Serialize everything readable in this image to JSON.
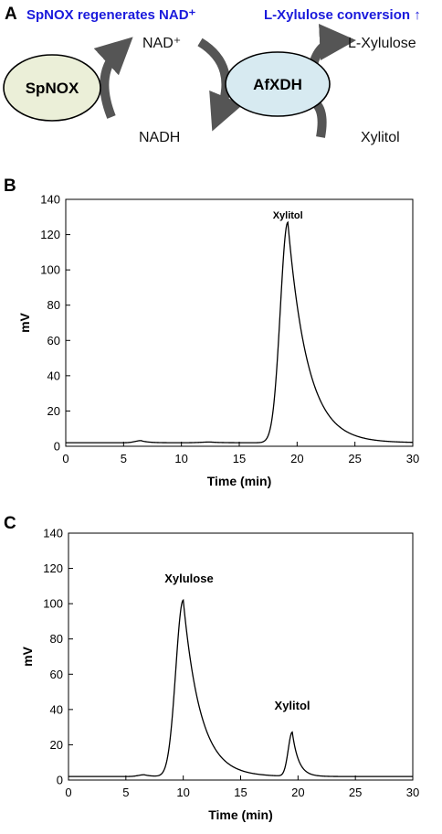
{
  "figure": {
    "panel_labels": [
      "A",
      "B",
      "C"
    ],
    "scheme": {
      "header_left": "SpNOX regenerates NAD⁺",
      "header_right": "L-Xylulose conversion ↑",
      "colors": {
        "header": "#1a1adc",
        "spnox_fill": "#ebefd8",
        "afxdh_fill": "#d7eaf1",
        "arrow": "#555555"
      },
      "nodes": {
        "left": "SpNOX",
        "right": "AfXDH"
      },
      "molecules": {
        "nad_plus": "NAD⁺",
        "nadh": "NADH",
        "l_xylulose": "L-Xylulose",
        "xylitol": "Xylitol"
      }
    }
  },
  "chart_data": [
    {
      "type": "line",
      "panel": "B",
      "xlabel": "Time (min)",
      "ylabel": "mV",
      "xlim": [
        0,
        30
      ],
      "ylim": [
        0,
        140
      ],
      "xticks": [
        0,
        5,
        10,
        15,
        20,
        25,
        30
      ],
      "yticks": [
        0,
        20,
        40,
        60,
        80,
        100,
        120,
        140
      ],
      "grid": false,
      "baseline": 2,
      "peaks": [
        {
          "label": "",
          "center": 6.5,
          "height": 1.2,
          "rise": 0.5,
          "tail": 0.6
        },
        {
          "label": "",
          "center": 12.5,
          "height": 0.4,
          "rise": 0.8,
          "tail": 0.8
        },
        {
          "label": "Xylitol",
          "center": 19.2,
          "height": 125,
          "rise": 0.65,
          "tail": 1.7
        }
      ],
      "annotations": [
        {
          "text": "Xylitol",
          "x": 19.2,
          "y": 129
        }
      ]
    },
    {
      "type": "line",
      "panel": "C",
      "xlabel": "Time (min)",
      "ylabel": "mV",
      "xlim": [
        0,
        30
      ],
      "ylim": [
        0,
        140
      ],
      "xticks": [
        0,
        5,
        10,
        15,
        20,
        25,
        30
      ],
      "yticks": [
        0,
        20,
        40,
        60,
        80,
        100,
        120,
        140
      ],
      "grid": false,
      "baseline": 2,
      "peaks": [
        {
          "label": "",
          "center": 6.6,
          "height": 1.0,
          "rise": 0.5,
          "tail": 0.6
        },
        {
          "label": "Xylulose",
          "center": 10.0,
          "height": 100,
          "rise": 0.65,
          "tail": 1.5
        },
        {
          "label": "Xylitol",
          "center": 19.5,
          "height": 25,
          "rise": 0.35,
          "tail": 0.55
        }
      ],
      "annotations": [
        {
          "text": "Xylulose",
          "x": 10.5,
          "y": 112
        },
        {
          "text": "Xylitol",
          "x": 19.5,
          "y": 40
        }
      ]
    }
  ]
}
